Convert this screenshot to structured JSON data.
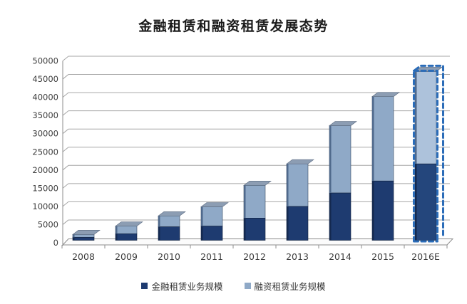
{
  "title": "金融租赁和融资租赁发展态势",
  "chart_data": {
    "type": "bar",
    "stacked": true,
    "title": "金融租赁和融资租赁发展态势",
    "categories": [
      "2008",
      "2009",
      "2010",
      "2011",
      "2012",
      "2013",
      "2014",
      "2015",
      "2016E"
    ],
    "series": [
      {
        "name": "金融租赁业务规模",
        "color": "#1e3b70",
        "values": [
          800,
          1800,
          3700,
          3900,
          6100,
          9300,
          13000,
          16300,
          21000
        ]
      },
      {
        "name": "融资租赁业务规模",
        "color": "#8fa9c7",
        "values": [
          800,
          2100,
          3000,
          5300,
          9000,
          11700,
          18500,
          23200,
          25400
        ]
      }
    ],
    "xlabel": "",
    "ylabel": "",
    "ylim": [
      0,
      50000
    ],
    "ytick_step": 5000,
    "ytick_labels": [
      "0",
      "5000",
      "10000",
      "15000",
      "20000",
      "25000",
      "30000",
      "35000",
      "40000",
      "45000",
      "50000"
    ],
    "grid": true,
    "legend_position": "bottom",
    "projection": "3d-column",
    "highlight_category": "2016E",
    "highlight_style": "dashed-blue-outline-forecast"
  },
  "legend": {
    "items": [
      {
        "label": "金融租赁业务规模",
        "color": "#1e3b70"
      },
      {
        "label": "融资租赁业务规模",
        "color": "#8fa9c7"
      }
    ]
  },
  "colors": {
    "series_dark": "#1e3b70",
    "series_dark_edge": "#14294f",
    "series_light": "#8fa9c7",
    "series_light_edge": "#4f698c",
    "bar_top_face": "#8c9db3",
    "gridline": "#a6a6a6",
    "axis_line": "#8c8c8c",
    "axis_text": "#3d3d3d",
    "forecast_outline": "#2b6cb8",
    "forecast_light_fill": "#adc2db",
    "forecast_dark_fill": "#24467c",
    "background": "#ffffff"
  }
}
